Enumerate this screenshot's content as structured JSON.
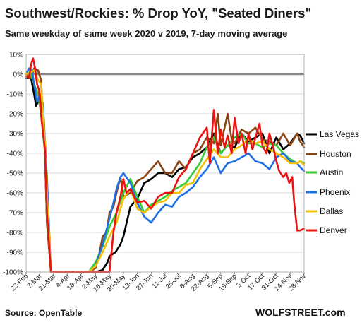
{
  "chart_data": {
    "type": "line",
    "title": "Southwest/Rockies: % Drop YoY, \"Seated Diners\"",
    "subtitle": "Same weekday of same week 2020 v 2019, 7-day moving average",
    "ylim": [
      -100,
      10
    ],
    "y_ticks": [
      "10%",
      "0%",
      "-10%",
      "-20%",
      "-30%",
      "-40%",
      "-50%",
      "-60%",
      "-70%",
      "-80%",
      "-90%",
      "-100%"
    ],
    "x_ticks": [
      "22-Feb",
      "7-Mar",
      "21-Mar",
      "4-Apr",
      "18-Apr",
      "2-May",
      "16-May",
      "30-May",
      "13-Jun",
      "27-Jun",
      "11-Jul",
      "25-Jul",
      "8-Aug",
      "22-Aug",
      "5-Sep",
      "19-Sep",
      "3-Oct",
      "17-Oct",
      "31-Oct",
      "14-Nov",
      "28-Nov"
    ],
    "grid": true,
    "legend_position": "right",
    "source": "Source: OpenTable",
    "brand": "WOLFSTREET.com",
    "series": [
      {
        "name": "Las Vegas",
        "color": "#000000",
        "x": [
          0,
          5,
          8,
          10,
          12,
          15,
          19,
          21,
          25,
          28,
          35,
          42,
          56,
          63,
          70,
          77,
          82,
          84,
          90,
          95,
          98,
          105,
          112,
          119,
          126,
          133,
          140,
          147,
          154,
          161,
          168,
          175,
          182,
          189,
          196,
          203,
          210,
          217,
          224,
          231,
          238,
          245,
          252,
          259,
          266,
          273,
          276,
          280
        ],
        "y": [
          -2,
          -2,
          -10,
          -16,
          -14,
          -13,
          -40,
          -75,
          -100,
          -100,
          -100,
          -100,
          -100,
          -100,
          -100,
          -99,
          -95,
          -92,
          -90,
          -86,
          -82,
          -67,
          -63,
          -55,
          -53,
          -50,
          -50,
          -52,
          -48,
          -47,
          -42,
          -40,
          -37,
          -30,
          -40,
          -36,
          -37,
          -30,
          -34,
          -32,
          -30,
          -40,
          -32,
          -38,
          -35,
          -30,
          -31,
          -35
        ]
      },
      {
        "name": "Houston",
        "color": "#8B4513",
        "x": [
          0,
          5,
          8,
          12,
          15,
          19,
          21,
          25,
          28,
          35,
          42,
          56,
          63,
          70,
          74,
          77,
          81,
          84,
          88,
          91,
          95,
          98,
          105,
          112,
          119,
          126,
          133,
          140,
          147,
          154,
          161,
          168,
          175,
          182,
          189,
          193,
          196,
          203,
          207,
          210,
          217,
          224,
          231,
          238,
          245,
          252,
          259,
          266,
          273,
          276,
          280
        ],
        "y": [
          0,
          -2,
          3,
          2,
          -3,
          -40,
          -74,
          -100,
          -100,
          -100,
          -100,
          -100,
          -100,
          -98,
          -90,
          -82,
          -80,
          -70,
          -67,
          -60,
          -52,
          -62,
          -60,
          -54,
          -52,
          -48,
          -44,
          -50,
          -50,
          -44,
          -48,
          -40,
          -38,
          -32,
          -35,
          -20,
          -36,
          -20,
          -33,
          -35,
          -28,
          -30,
          -27,
          -33,
          -34,
          -36,
          -30,
          -36,
          -30,
          -34,
          -37
        ]
      },
      {
        "name": "Austin",
        "color": "#33cc33",
        "x": [
          0,
          4,
          8,
          12,
          15,
          19,
          21,
          25,
          28,
          35,
          42,
          56,
          63,
          70,
          77,
          84,
          91,
          98,
          105,
          112,
          119,
          126,
          133,
          140,
          147,
          154,
          161,
          168,
          175,
          182,
          189,
          196,
          203,
          210,
          217,
          224,
          231,
          238,
          245,
          252,
          259,
          266,
          273,
          276,
          280
        ],
        "y": [
          0,
          1,
          -5,
          -10,
          -20,
          -40,
          -72,
          -100,
          -100,
          -100,
          -100,
          -100,
          -100,
          -95,
          -87,
          -77,
          -70,
          -60,
          -53,
          -62,
          -70,
          -66,
          -64,
          -62,
          -59,
          -57,
          -55,
          -50,
          -45,
          -37,
          -32,
          -40,
          -36,
          -32,
          -30,
          -35,
          -35,
          -37,
          -35,
          -36,
          -40,
          -43,
          -45,
          -44,
          -45
        ]
      },
      {
        "name": "Phoenix",
        "color": "#1e6fe6",
        "x": [
          0,
          3,
          6,
          8,
          11,
          14,
          17,
          21,
          25,
          28,
          35,
          42,
          56,
          63,
          70,
          77,
          84,
          88,
          91,
          95,
          98,
          105,
          112,
          119,
          126,
          133,
          140,
          147,
          154,
          161,
          168,
          175,
          182,
          189,
          196,
          203,
          210,
          217,
          224,
          231,
          238,
          245,
          252,
          259,
          266,
          273,
          276,
          280
        ],
        "y": [
          0,
          3,
          2,
          -5,
          -14,
          -10,
          -15,
          -52,
          -100,
          -100,
          -100,
          -100,
          -100,
          -100,
          -97,
          -86,
          -73,
          -65,
          -58,
          -52,
          -50,
          -55,
          -65,
          -72,
          -75,
          -70,
          -66,
          -67,
          -62,
          -60,
          -57,
          -52,
          -48,
          -42,
          -50,
          -45,
          -44,
          -42,
          -40,
          -44,
          -45,
          -48,
          -42,
          -40,
          -44,
          -45,
          -47,
          -49
        ]
      },
      {
        "name": "Dallas",
        "color": "#f5c000",
        "x": [
          0,
          5,
          8,
          12,
          15,
          19,
          21,
          25,
          28,
          35,
          42,
          56,
          63,
          70,
          77,
          84,
          91,
          98,
          105,
          112,
          119,
          126,
          133,
          140,
          147,
          154,
          161,
          168,
          175,
          182,
          189,
          196,
          203,
          210,
          217,
          224,
          231,
          238,
          245,
          252,
          259,
          266,
          273,
          276,
          280
        ],
        "y": [
          0,
          1,
          2,
          -3,
          -5,
          -35,
          -60,
          -100,
          -100,
          -100,
          -100,
          -100,
          -100,
          -97,
          -90,
          -82,
          -75,
          -63,
          -58,
          -68,
          -70,
          -67,
          -65,
          -64,
          -60,
          -60,
          -56,
          -55,
          -48,
          -43,
          -38,
          -42,
          -42,
          -38,
          -36,
          -33,
          -35,
          -34,
          -38,
          -40,
          -42,
          -45,
          -45,
          -44,
          -46
        ]
      },
      {
        "name": "Denver",
        "color": "#ee1111",
        "x": [
          0,
          3,
          5,
          7,
          9,
          11,
          13,
          16,
          19,
          21,
          25,
          28,
          35,
          42,
          56,
          63,
          70,
          77,
          84,
          86,
          88,
          91,
          95,
          98,
          101,
          105,
          112,
          119,
          126,
          133,
          140,
          147,
          154,
          161,
          168,
          175,
          182,
          185,
          189,
          193,
          196,
          200,
          203,
          207,
          210,
          214,
          217,
          221,
          224,
          228,
          231,
          235,
          238,
          242,
          245,
          249,
          252,
          255,
          259,
          262,
          265,
          268,
          270,
          273,
          276,
          280
        ],
        "y": [
          -1,
          -2,
          5,
          8,
          3,
          -5,
          -8,
          -25,
          -38,
          -70,
          -100,
          -100,
          -100,
          -100,
          -100,
          -100,
          -100,
          -100,
          -100,
          -90,
          -80,
          -70,
          -62,
          -53,
          -60,
          -58,
          -65,
          -64,
          -68,
          -62,
          -60,
          -60,
          -52,
          -48,
          -40,
          -32,
          -27,
          -45,
          -18,
          -40,
          -28,
          -37,
          -31,
          -40,
          -22,
          -35,
          -30,
          -40,
          -30,
          -38,
          -32,
          -25,
          -36,
          -40,
          -30,
          -37,
          -44,
          -49,
          -52,
          -50,
          -55,
          -52,
          -65,
          -79,
          -79,
          -78
        ]
      }
    ]
  }
}
